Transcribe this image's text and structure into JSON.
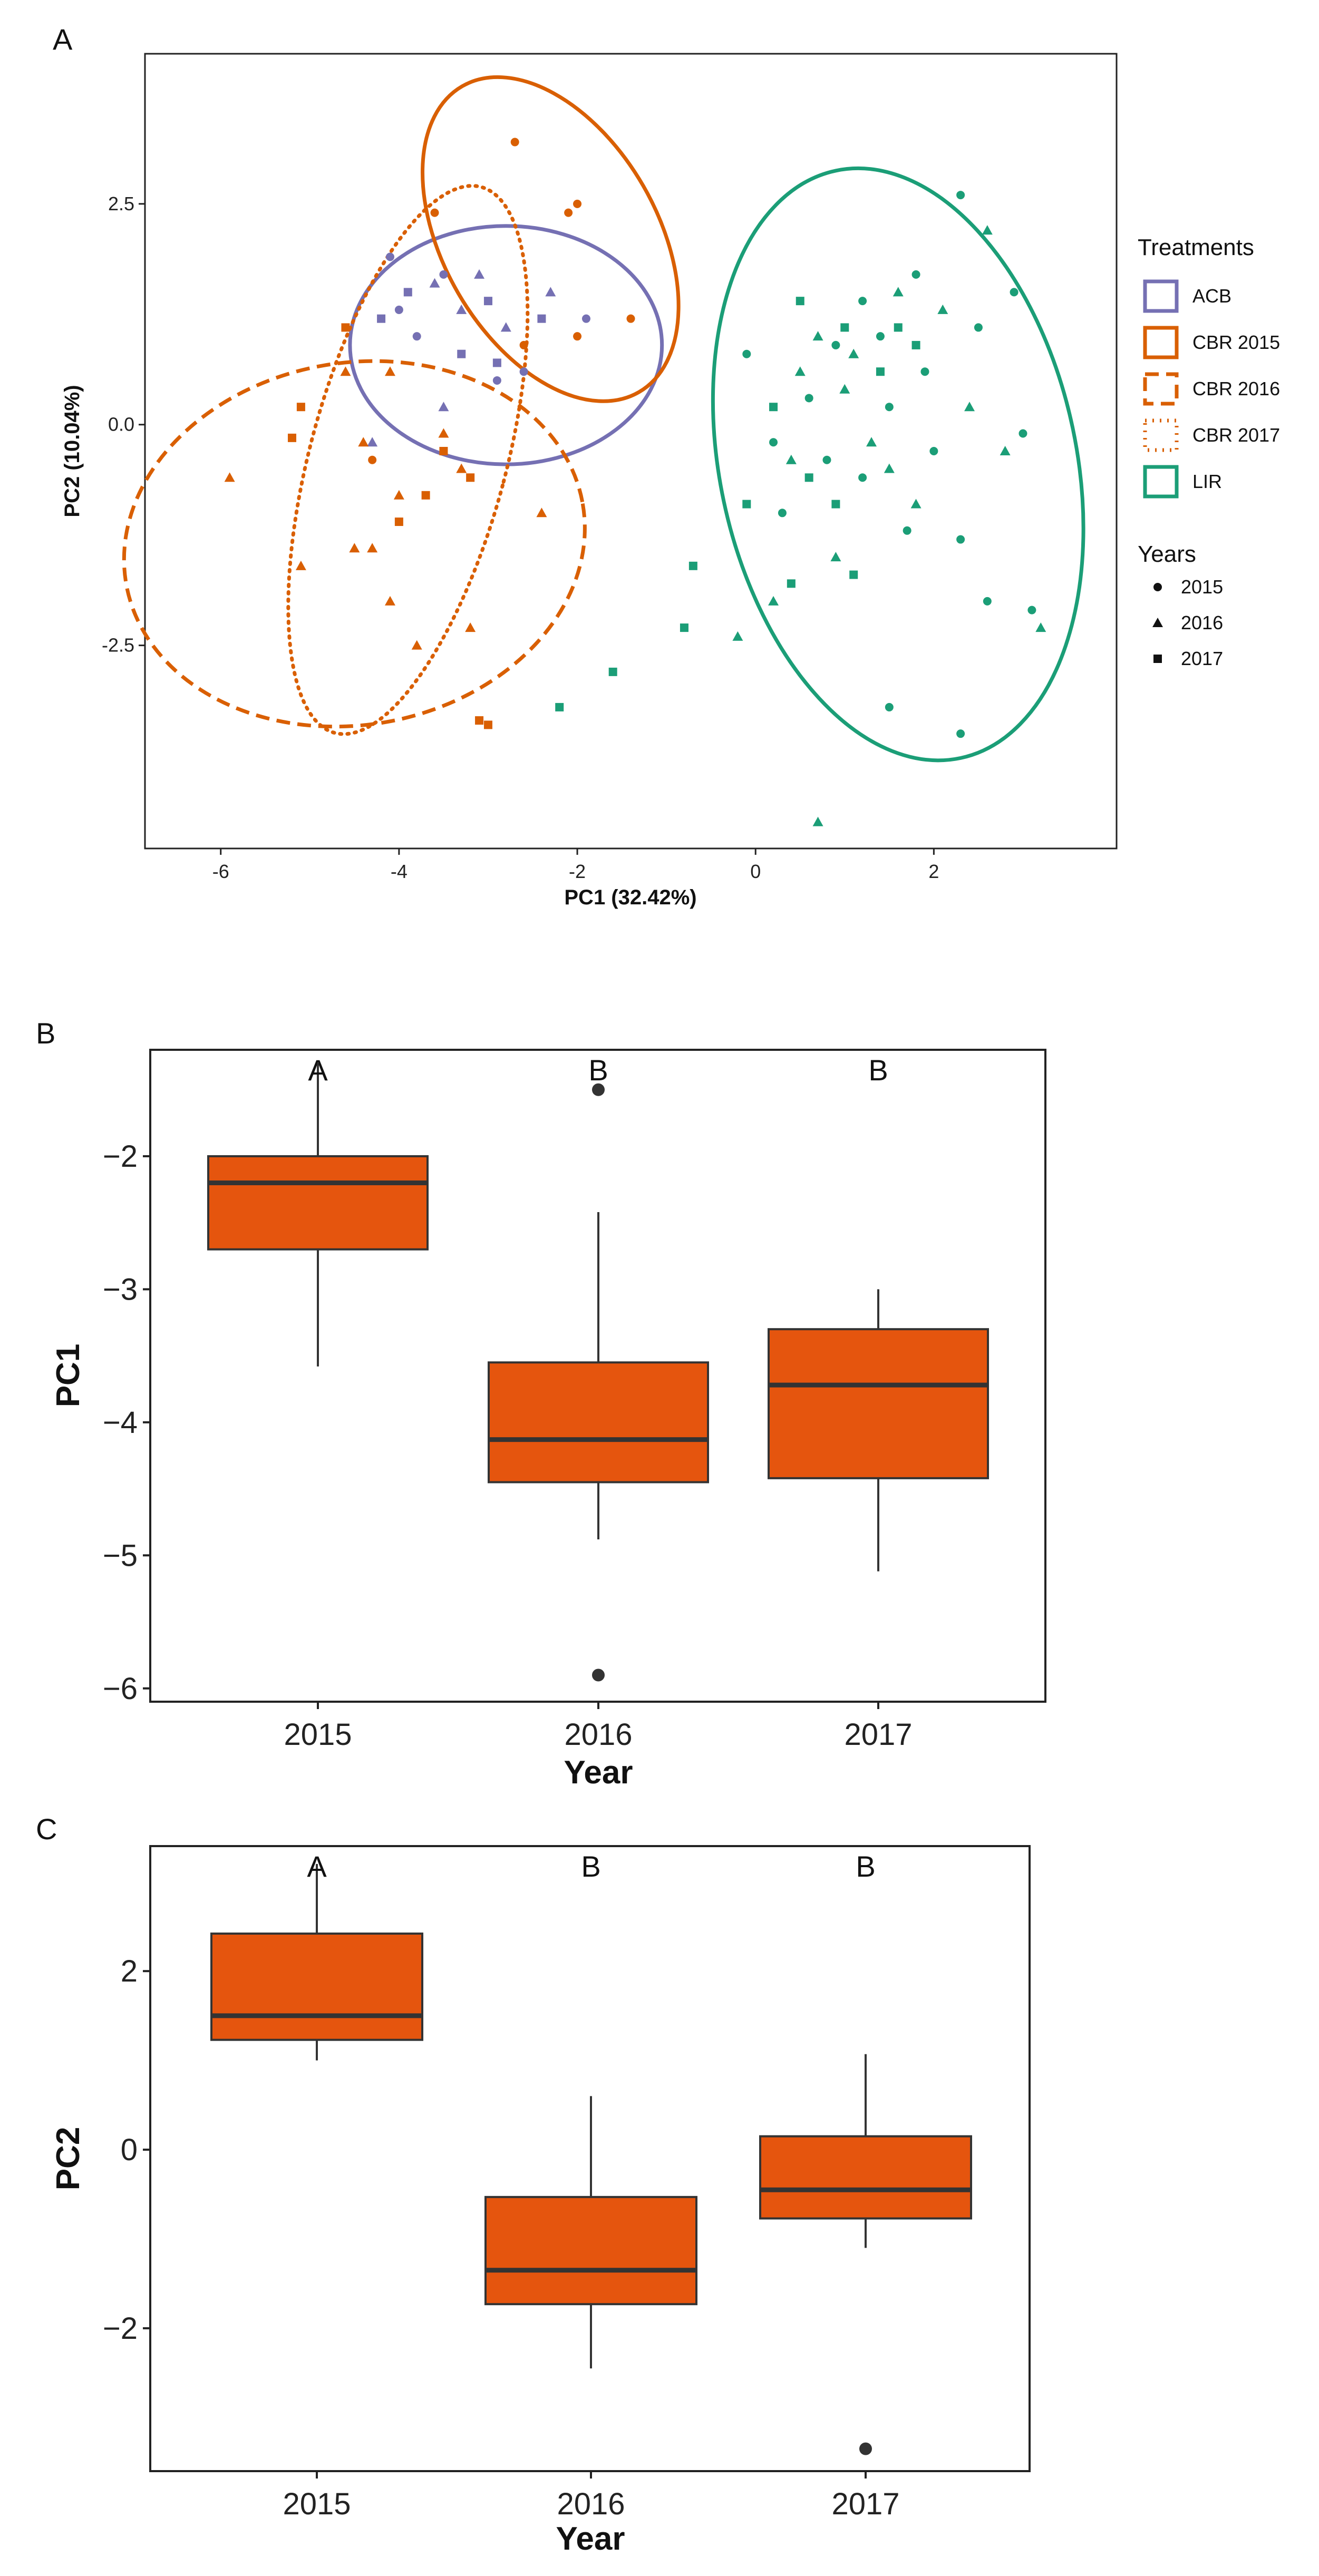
{
  "chart_data": [
    {
      "panel": "A",
      "type": "scatter",
      "xlabel": "PC1 (32.42%)",
      "ylabel": "PC2 (10.04%)",
      "xlim": [
        -6.85,
        4.05
      ],
      "ylim": [
        -4.8,
        4.2
      ],
      "xticks": [
        -6,
        -4,
        -2,
        0,
        2
      ],
      "yticks": [
        2.5,
        0.0,
        -2.5
      ],
      "ytick_labels": [
        "2.5",
        "0.0",
        "-2.5"
      ],
      "legend": {
        "treatments_title": "Treatments",
        "treatments": [
          {
            "name": "ACB",
            "color": "#7570b3",
            "line": "solid"
          },
          {
            "name": "CBR 2015",
            "color": "#d95f02",
            "line": "solid"
          },
          {
            "name": "CBR 2016",
            "color": "#d95f02",
            "line": "dashed"
          },
          {
            "name": "CBR 2017",
            "color": "#d95f02",
            "line": "dotted"
          },
          {
            "name": "LIR",
            "color": "#1b9e77",
            "line": "solid"
          }
        ],
        "years_title": "Years",
        "years": [
          {
            "name": "2015",
            "shape": "circle"
          },
          {
            "name": "2016",
            "shape": "triangle"
          },
          {
            "name": "2017",
            "shape": "square"
          }
        ]
      },
      "ellipses": [
        {
          "group": "ACB",
          "cx": -2.8,
          "cy": 0.9,
          "rx": 1.75,
          "ry": 1.35,
          "angle": 0
        },
        {
          "group": "CBR 2015",
          "cx": -2.3,
          "cy": 2.1,
          "rx": 1.2,
          "ry": 2.0,
          "angle": -30
        },
        {
          "group": "CBR 2016",
          "cx": -4.5,
          "cy": -1.35,
          "rx": 2.6,
          "ry": 2.05,
          "angle": -10
        },
        {
          "group": "CBR 2017",
          "cx": -3.9,
          "cy": -0.4,
          "rx": 1.1,
          "ry": 3.2,
          "angle": 15
        },
        {
          "group": "LIR",
          "cx": 1.6,
          "cy": -0.45,
          "rx": 2.0,
          "ry": 3.4,
          "angle": -12
        }
      ],
      "points": [
        {
          "g": "ACB",
          "y": 2015,
          "x": -4.0,
          "v": 1.3
        },
        {
          "g": "ACB",
          "y": 2015,
          "x": -4.1,
          "v": 1.9
        },
        {
          "g": "ACB",
          "y": 2015,
          "x": -3.8,
          "v": 1.0
        },
        {
          "g": "ACB",
          "y": 2015,
          "x": -3.5,
          "v": 1.7
        },
        {
          "g": "ACB",
          "y": 2015,
          "x": -2.6,
          "v": 0.6
        },
        {
          "g": "ACB",
          "y": 2015,
          "x": -1.9,
          "v": 1.2
        },
        {
          "g": "ACB",
          "y": 2015,
          "x": -2.9,
          "v": 0.5
        },
        {
          "g": "ACB",
          "y": 2016,
          "x": -3.6,
          "v": 1.6
        },
        {
          "g": "ACB",
          "y": 2016,
          "x": -3.1,
          "v": 1.7
        },
        {
          "g": "ACB",
          "y": 2016,
          "x": -3.3,
          "v": 1.3
        },
        {
          "g": "ACB",
          "y": 2016,
          "x": -2.3,
          "v": 1.5
        },
        {
          "g": "ACB",
          "y": 2016,
          "x": -3.5,
          "v": 0.2
        },
        {
          "g": "ACB",
          "y": 2016,
          "x": -4.3,
          "v": -0.2
        },
        {
          "g": "ACB",
          "y": 2016,
          "x": -2.8,
          "v": 1.1
        },
        {
          "g": "ACB",
          "y": 2017,
          "x": -4.2,
          "v": 1.2
        },
        {
          "g": "ACB",
          "y": 2017,
          "x": -3.9,
          "v": 1.5
        },
        {
          "g": "ACB",
          "y": 2017,
          "x": -3.3,
          "v": 0.8
        },
        {
          "g": "ACB",
          "y": 2017,
          "x": -2.9,
          "v": 0.7
        },
        {
          "g": "ACB",
          "y": 2017,
          "x": -2.4,
          "v": 1.2
        },
        {
          "g": "ACB",
          "y": 2017,
          "x": -3.0,
          "v": 1.4
        },
        {
          "g": "CBR 2015",
          "y": 2015,
          "x": -2.7,
          "v": 3.2
        },
        {
          "g": "CBR 2015",
          "y": 2015,
          "x": -2.1,
          "v": 2.4
        },
        {
          "g": "CBR 2015",
          "y": 2015,
          "x": -2.0,
          "v": 2.5
        },
        {
          "g": "CBR 2015",
          "y": 2015,
          "x": -1.4,
          "v": 1.2
        },
        {
          "g": "CBR 2015",
          "y": 2015,
          "x": -2.0,
          "v": 1.0
        },
        {
          "g": "CBR 2015",
          "y": 2015,
          "x": -3.6,
          "v": 2.4
        },
        {
          "g": "CBR 2015",
          "y": 2015,
          "x": -2.6,
          "v": 0.9
        },
        {
          "g": "CBR 2015",
          "y": 2016,
          "x": -5.9,
          "v": -0.6
        },
        {
          "g": "CBR 2016",
          "y": 2016,
          "x": -4.4,
          "v": -0.2
        },
        {
          "g": "CBR 2016",
          "y": 2016,
          "x": -4.5,
          "v": -1.4
        },
        {
          "g": "CBR 2016",
          "y": 2016,
          "x": -4.1,
          "v": -2.0
        },
        {
          "g": "CBR 2016",
          "y": 2016,
          "x": -3.8,
          "v": -2.5
        },
        {
          "g": "CBR 2016",
          "y": 2016,
          "x": -5.1,
          "v": -1.6
        },
        {
          "g": "CBR 2016",
          "y": 2016,
          "x": -3.2,
          "v": -2.3
        },
        {
          "g": "CBR 2016",
          "y": 2016,
          "x": -4.6,
          "v": 0.6
        },
        {
          "g": "CBR 2016",
          "y": 2016,
          "x": -4.1,
          "v": 0.6
        },
        {
          "g": "CBR 2016",
          "y": 2016,
          "x": -3.3,
          "v": -0.5
        },
        {
          "g": "CBR 2016",
          "y": 2016,
          "x": -2.4,
          "v": -1.0
        },
        {
          "g": "CBR 2016",
          "y": 2017,
          "x": -5.2,
          "v": -0.15
        },
        {
          "g": "CBR 2016",
          "y": 2017,
          "x": -5.1,
          "v": 0.2
        },
        {
          "g": "CBR 2016",
          "y": 2017,
          "x": -3.7,
          "v": -0.8
        },
        {
          "g": "CBR 2016",
          "y": 2017,
          "x": -3.2,
          "v": -0.6
        },
        {
          "g": "CBR 2016",
          "y": 2017,
          "x": -4.0,
          "v": -1.1
        },
        {
          "g": "CBR 2017",
          "y": 2015,
          "x": -4.3,
          "v": -0.4
        },
        {
          "g": "CBR 2017",
          "y": 2016,
          "x": -4.0,
          "v": -0.8
        },
        {
          "g": "CBR 2017",
          "y": 2016,
          "x": -4.3,
          "v": -1.4
        },
        {
          "g": "CBR 2017",
          "y": 2016,
          "x": -3.5,
          "v": -0.1
        },
        {
          "g": "CBR 2017",
          "y": 2017,
          "x": -4.6,
          "v": 1.1
        },
        {
          "g": "CBR 2017",
          "y": 2017,
          "x": -3.5,
          "v": -0.3
        },
        {
          "g": "CBR 2017",
          "y": 2017,
          "x": -3.0,
          "v": -3.4
        },
        {
          "g": "CBR 2017",
          "y": 2017,
          "x": -3.1,
          "v": -3.35
        },
        {
          "g": "LIR",
          "y": 2015,
          "x": 1.8,
          "v": 1.7
        },
        {
          "g": "LIR",
          "y": 2015,
          "x": 1.2,
          "v": 1.4
        },
        {
          "g": "LIR",
          "y": 2015,
          "x": 0.9,
          "v": 0.9
        },
        {
          "g": "LIR",
          "y": 2015,
          "x": 2.3,
          "v": 2.6
        },
        {
          "g": "LIR",
          "y": 2015,
          "x": 2.9,
          "v": 1.5
        },
        {
          "g": "LIR",
          "y": 2015,
          "x": -0.1,
          "v": 0.8
        },
        {
          "g": "LIR",
          "y": 2015,
          "x": 0.6,
          "v": 0.3
        },
        {
          "g": "LIR",
          "y": 2015,
          "x": 1.5,
          "v": 0.2
        },
        {
          "g": "LIR",
          "y": 2015,
          "x": 2.0,
          "v": -0.3
        },
        {
          "g": "LIR",
          "y": 2015,
          "x": 1.2,
          "v": -0.6
        },
        {
          "g": "LIR",
          "y": 2015,
          "x": 0.3,
          "v": -1.0
        },
        {
          "g": "LIR",
          "y": 2015,
          "x": 1.7,
          "v": -1.2
        },
        {
          "g": "LIR",
          "y": 2015,
          "x": 2.3,
          "v": -1.3
        },
        {
          "g": "LIR",
          "y": 2015,
          "x": 3.0,
          "v": -0.1
        },
        {
          "g": "LIR",
          "y": 2015,
          "x": 2.6,
          "v": -2.0
        },
        {
          "g": "LIR",
          "y": 2015,
          "x": 3.1,
          "v": -2.1
        },
        {
          "g": "LIR",
          "y": 2015,
          "x": 1.5,
          "v": -3.2
        },
        {
          "g": "LIR",
          "y": 2015,
          "x": 2.3,
          "v": -3.5
        },
        {
          "g": "LIR",
          "y": 2015,
          "x": 0.8,
          "v": -0.4
        },
        {
          "g": "LIR",
          "y": 2015,
          "x": 1.9,
          "v": 0.6
        },
        {
          "g": "LIR",
          "y": 2015,
          "x": 2.5,
          "v": 1.1
        },
        {
          "g": "LIR",
          "y": 2015,
          "x": 0.2,
          "v": -0.2
        },
        {
          "g": "LIR",
          "y": 2015,
          "x": 1.4,
          "v": 1.0
        },
        {
          "g": "LIR",
          "y": 2016,
          "x": 1.6,
          "v": 1.5
        },
        {
          "g": "LIR",
          "y": 2016,
          "x": 2.1,
          "v": 1.3
        },
        {
          "g": "LIR",
          "y": 2016,
          "x": 2.6,
          "v": 2.2
        },
        {
          "g": "LIR",
          "y": 2016,
          "x": 0.7,
          "v": 1.0
        },
        {
          "g": "LIR",
          "y": 2016,
          "x": 1.0,
          "v": 0.4
        },
        {
          "g": "LIR",
          "y": 2016,
          "x": 0.4,
          "v": -0.4
        },
        {
          "g": "LIR",
          "y": 2016,
          "x": 1.3,
          "v": -0.2
        },
        {
          "g": "LIR",
          "y": 2016,
          "x": 2.4,
          "v": 0.2
        },
        {
          "g": "LIR",
          "y": 2016,
          "x": 0.9,
          "v": -1.5
        },
        {
          "g": "LIR",
          "y": 2016,
          "x": -0.2,
          "v": -2.4
        },
        {
          "g": "LIR",
          "y": 2016,
          "x": 0.2,
          "v": -2.0
        },
        {
          "g": "LIR",
          "y": 2016,
          "x": 3.2,
          "v": -2.3
        },
        {
          "g": "LIR",
          "y": 2016,
          "x": 0.7,
          "v": -4.5
        },
        {
          "g": "LIR",
          "y": 2016,
          "x": 1.8,
          "v": -0.9
        },
        {
          "g": "LIR",
          "y": 2016,
          "x": 2.8,
          "v": -0.3
        },
        {
          "g": "LIR",
          "y": 2016,
          "x": 1.1,
          "v": 0.8
        },
        {
          "g": "LIR",
          "y": 2016,
          "x": 0.5,
          "v": 0.6
        },
        {
          "g": "LIR",
          "y": 2016,
          "x": 1.5,
          "v": -0.5
        },
        {
          "g": "LIR",
          "y": 2017,
          "x": 0.5,
          "v": 1.4
        },
        {
          "g": "LIR",
          "y": 2017,
          "x": 1.0,
          "v": 1.1
        },
        {
          "g": "LIR",
          "y": 2017,
          "x": 0.2,
          "v": 0.2
        },
        {
          "g": "LIR",
          "y": 2017,
          "x": 0.6,
          "v": -0.6
        },
        {
          "g": "LIR",
          "y": 2017,
          "x": -0.1,
          "v": -0.9
        },
        {
          "g": "LIR",
          "y": 2017,
          "x": -0.7,
          "v": -1.6
        },
        {
          "g": "LIR",
          "y": 2017,
          "x": 0.4,
          "v": -1.8
        },
        {
          "g": "LIR",
          "y": 2017,
          "x": 1.1,
          "v": -1.7
        },
        {
          "g": "LIR",
          "y": 2017,
          "x": -0.8,
          "v": -2.3
        },
        {
          "g": "LIR",
          "y": 2017,
          "x": -1.6,
          "v": -2.8
        },
        {
          "g": "LIR",
          "y": 2017,
          "x": -2.2,
          "v": -3.2
        },
        {
          "g": "LIR",
          "y": 2017,
          "x": 1.4,
          "v": 0.6
        },
        {
          "g": "LIR",
          "y": 2017,
          "x": 1.8,
          "v": 0.9
        },
        {
          "g": "LIR",
          "y": 2017,
          "x": 0.9,
          "v": -0.9
        },
        {
          "g": "LIR",
          "y": 2017,
          "x": 1.6,
          "v": 1.1
        }
      ]
    },
    {
      "panel": "B",
      "type": "box",
      "xlabel": "Year",
      "ylabel": "PC1",
      "ylim": [
        -6.1,
        -1.2
      ],
      "yticks": [
        -2,
        -3,
        -4,
        -5,
        -6
      ],
      "ytick_labels": [
        "−2",
        "−3",
        "−4",
        "−5",
        "−6"
      ],
      "categories": [
        "2015",
        "2016",
        "2017"
      ],
      "letters": [
        "A",
        "B",
        "B"
      ],
      "boxes": [
        {
          "whisker_low": -3.58,
          "q1": -2.7,
          "median": -2.2,
          "q3": -2.0,
          "whisker_high": -1.3,
          "outliers": []
        },
        {
          "whisker_low": -4.88,
          "q1": -4.45,
          "median": -4.13,
          "q3": -3.55,
          "whisker_high": -2.42,
          "outliers": [
            -1.5,
            -5.9
          ]
        },
        {
          "whisker_low": -5.12,
          "q1": -4.42,
          "median": -3.72,
          "q3": -3.3,
          "whisker_high": -3.0,
          "outliers": []
        }
      ],
      "fill": "#e5550e"
    },
    {
      "panel": "C",
      "type": "box",
      "xlabel": "Year",
      "ylabel": "PC2",
      "ylim": [
        -3.6,
        3.4
      ],
      "yticks": [
        2,
        0,
        -2
      ],
      "ytick_labels": [
        "2",
        "0",
        "−2"
      ],
      "categories": [
        "2015",
        "2016",
        "2017"
      ],
      "letters": [
        "A",
        "B",
        "B"
      ],
      "boxes": [
        {
          "whisker_low": 1.0,
          "q1": 1.23,
          "median": 1.5,
          "q3": 2.42,
          "whisker_high": 3.2,
          "outliers": []
        },
        {
          "whisker_low": -2.45,
          "q1": -1.73,
          "median": -1.35,
          "q3": -0.53,
          "whisker_high": 0.6,
          "outliers": []
        },
        {
          "whisker_low": -1.1,
          "q1": -0.77,
          "median": -0.45,
          "q3": 0.15,
          "whisker_high": 1.07,
          "outliers": [
            -3.35
          ]
        }
      ],
      "fill": "#e5550e"
    }
  ]
}
